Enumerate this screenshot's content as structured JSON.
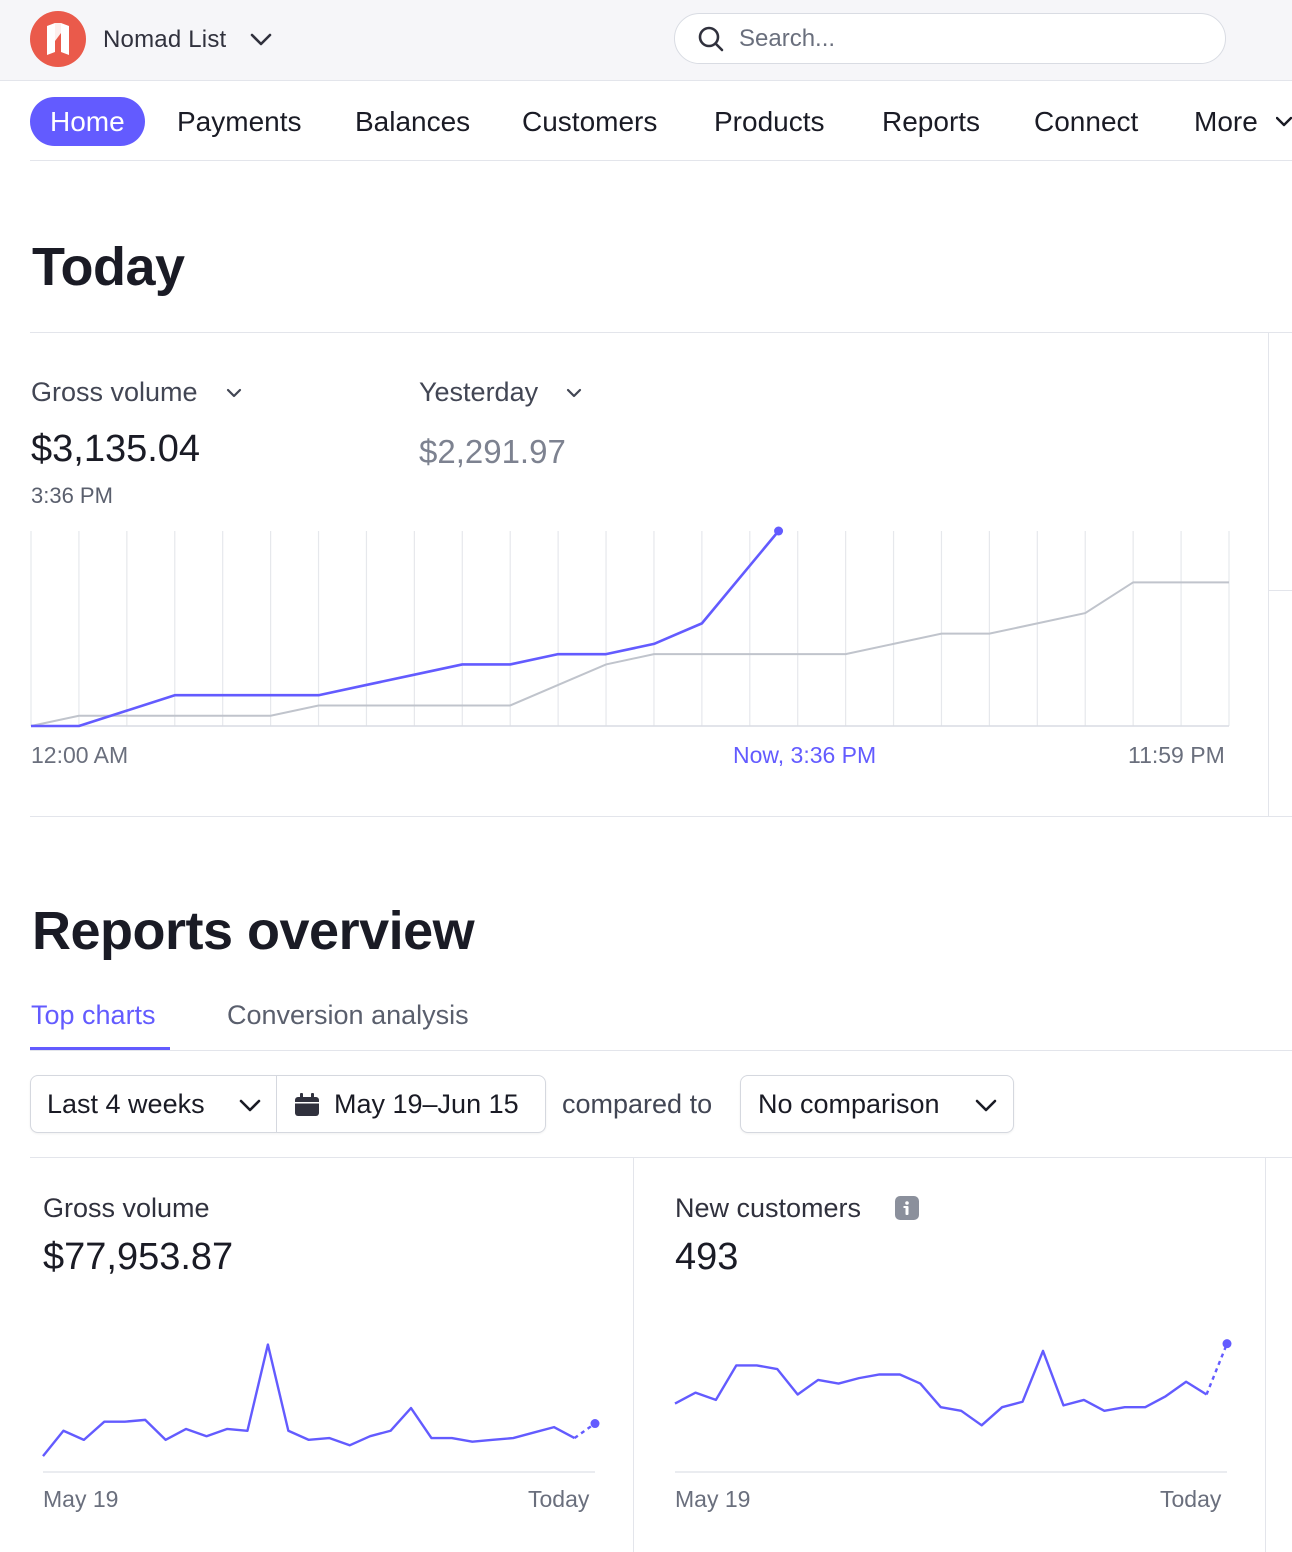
{
  "header": {
    "account_name": "Nomad List",
    "search_placeholder": "Search..."
  },
  "nav": {
    "items": [
      "Home",
      "Payments",
      "Balances",
      "Customers",
      "Products",
      "Reports",
      "Connect",
      "More"
    ],
    "active": "Home"
  },
  "today": {
    "title": "Today",
    "primary_metric_label": "Gross volume",
    "primary_value": "$3,135.04",
    "primary_time": "3:36 PM",
    "compare_label": "Yesterday",
    "compare_value": "$2,291.97",
    "axis_start": "12:00 AM",
    "axis_now": "Now, 3:36 PM",
    "axis_end": "11:59 PM"
  },
  "reports": {
    "title": "Reports overview",
    "tabs": [
      "Top charts",
      "Conversion analysis"
    ],
    "active_tab": "Top charts",
    "range_label": "Last 4 weeks",
    "date_range": "May 19–Jun 15",
    "compared_to": "compared to",
    "comparison_label": "No comparison",
    "cards": [
      {
        "label": "Gross volume",
        "value": "$77,953.87",
        "axis_start": "May 19",
        "axis_end": "Today"
      },
      {
        "label": "New customers",
        "value": "493",
        "axis_start": "May 19",
        "axis_end": "Today"
      }
    ]
  },
  "colors": {
    "accent": "#635bff",
    "compare_line": "#c0c4cc",
    "logo": "#ea5a4b"
  },
  "chart_data": [
    {
      "type": "line",
      "title": "Gross volume — Today",
      "x": [
        "00:00",
        "01:00",
        "02:00",
        "03:00",
        "04:00",
        "05:00",
        "06:00",
        "07:00",
        "08:00",
        "09:00",
        "10:00",
        "11:00",
        "12:00",
        "13:00",
        "14:00",
        "15:00",
        "15:36",
        "16:00",
        "17:00",
        "18:00",
        "19:00",
        "20:00",
        "21:00",
        "22:00",
        "23:00",
        "23:59"
      ],
      "series": [
        {
          "name": "Today",
          "values": [
            0,
            0,
            15,
            30,
            30,
            30,
            30,
            40,
            50,
            60,
            60,
            70,
            70,
            80,
            100,
            190,
            null,
            null,
            null,
            null,
            null,
            null,
            null,
            null,
            null,
            null
          ]
        },
        {
          "name": "Yesterday",
          "values": [
            0,
            10,
            10,
            10,
            10,
            10,
            20,
            20,
            20,
            20,
            20,
            40,
            60,
            70,
            70,
            70,
            70,
            70,
            80,
            90,
            90,
            100,
            110,
            140,
            140,
            140
          ]
        }
      ],
      "ylim": [
        0,
        190
      ]
    },
    {
      "type": "line",
      "title": "Gross volume — Last 4 weeks",
      "values": [
        2,
        30,
        20,
        40,
        40,
        42,
        20,
        32,
        24,
        32,
        30,
        125,
        30,
        20,
        22,
        14,
        24,
        30,
        55,
        22,
        22,
        18,
        20,
        22,
        28,
        34,
        22,
        38
      ],
      "ylim": [
        0,
        130
      ],
      "last_point_dotted": true
    },
    {
      "type": "line",
      "title": "New customers — Last 4 weeks",
      "values": [
        60,
        72,
        64,
        102,
        102,
        98,
        70,
        86,
        82,
        88,
        92,
        92,
        82,
        56,
        52,
        36,
        56,
        62,
        118,
        58,
        64,
        52,
        56,
        56,
        68,
        84,
        70,
        126
      ],
      "ylim": [
        0,
        130
      ],
      "last_point_dotted": true
    }
  ]
}
